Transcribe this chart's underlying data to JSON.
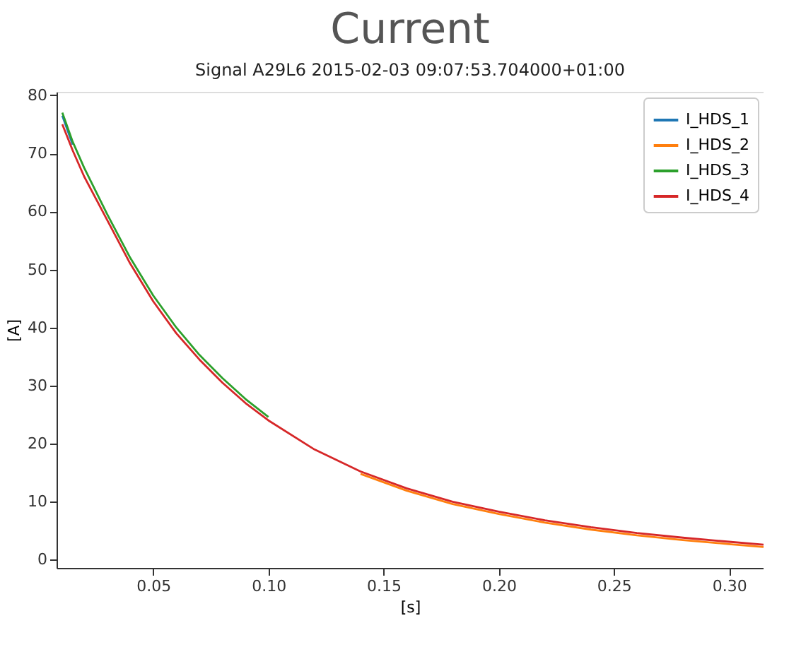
{
  "chart_data": {
    "type": "line",
    "title": "Current",
    "subtitle": "Signal  A29L6  2015-02-03 09:07:53.704000+01:00",
    "xlabel": "[s]",
    "ylabel": "[A]",
    "x": [
      0.0105,
      0.015,
      0.02,
      0.03,
      0.04,
      0.05,
      0.06,
      0.07,
      0.08,
      0.09,
      0.1,
      0.12,
      0.14,
      0.16,
      0.18,
      0.2,
      0.22,
      0.24,
      0.26,
      0.28,
      0.3,
      0.315
    ],
    "series": [
      {
        "name": "I_HDS_1",
        "color": "#1f77b4",
        "values": [
          76.5,
          71.5,
          null,
          null,
          null,
          null,
          null,
          null,
          null,
          null,
          null,
          null,
          null,
          null,
          null,
          null,
          null,
          null,
          null,
          null,
          null,
          null
        ]
      },
      {
        "name": "I_HDS_2",
        "color": "#ff7f0e",
        "values": [
          null,
          null,
          null,
          null,
          null,
          null,
          null,
          null,
          null,
          null,
          null,
          null,
          14.8,
          11.9,
          9.6,
          7.9,
          6.4,
          5.2,
          4.2,
          3.4,
          2.7,
          2.2
        ]
      },
      {
        "name": "I_HDS_3",
        "color": "#2ca02c",
        "values": [
          77,
          72,
          67.5,
          59.5,
          52,
          45.5,
          40,
          35.3,
          31.3,
          27.7,
          24.6,
          null,
          null,
          null,
          null,
          null,
          null,
          null,
          null,
          null,
          null,
          null
        ]
      },
      {
        "name": "I_HDS_4",
        "color": "#d62728",
        "values": [
          75,
          70.5,
          66,
          58.5,
          51,
          44.5,
          39,
          34.5,
          30.5,
          27,
          24,
          19,
          15.2,
          12.3,
          10,
          8.3,
          6.8,
          5.6,
          4.6,
          3.8,
          3.1,
          2.6
        ]
      }
    ],
    "xlim": [
      0.008,
      0.315
    ],
    "xticks": [
      {
        "value": 0.05,
        "label": "0.05"
      },
      {
        "value": 0.1,
        "label": "0.10"
      },
      {
        "value": 0.15,
        "label": "0.15"
      },
      {
        "value": 0.2,
        "label": "0.20"
      },
      {
        "value": 0.25,
        "label": "0.25"
      },
      {
        "value": 0.3,
        "label": "0.30"
      }
    ],
    "ylim": [
      -1.4,
      80.6
    ],
    "yticks": [
      0,
      10,
      20,
      30,
      40,
      50,
      60,
      70,
      80
    ],
    "grid": false,
    "legend": "top right",
    "marker": "none",
    "line_style": "solid"
  }
}
